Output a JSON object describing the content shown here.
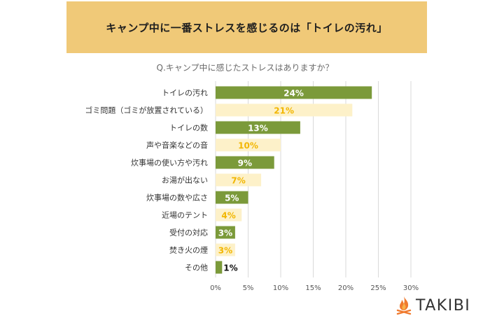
{
  "banner": {
    "title": "キャンプ中に一番ストレスを感じるのは「トイレの汚れ」"
  },
  "question": "Q.キャンプ中に感じたストレスはありますか？",
  "logo": {
    "text": "TAKIBI",
    "icon": "campfire-icon"
  },
  "colors": {
    "banner": "#f0c978",
    "bar_green": "#7b9a3a",
    "bar_cream": "#fdf1c9",
    "label_on_green": "#ffffff",
    "label_on_cream": "#f2b600",
    "label_outside": "#111111",
    "grid": "#d9d9d9"
  },
  "chart_data": {
    "type": "bar",
    "orientation": "horizontal",
    "categories": [
      "トイレの汚れ",
      "ゴミ問題（ゴミが放置されている）",
      "トイレの数",
      "声や音楽などの音",
      "炊事場の使い方や汚れ",
      "お湯が出ない",
      "炊事場の数や広さ",
      "近場のテント",
      "受付の対応",
      "焚き火の煙",
      "その他"
    ],
    "values": [
      24,
      21,
      13,
      10,
      9,
      7,
      5,
      4,
      3,
      3,
      1
    ],
    "value_labels": [
      "24%",
      "21%",
      "13%",
      "10%",
      "9%",
      "7%",
      "5%",
      "4%",
      "3%",
      "3%",
      "1%"
    ],
    "bar_colors": [
      "green",
      "cream",
      "green",
      "cream",
      "green",
      "cream",
      "green",
      "cream",
      "green",
      "cream",
      "green"
    ],
    "xlim": [
      0,
      30
    ],
    "xticks": [
      "0%",
      "5%",
      "10%",
      "15%",
      "20%",
      "25%",
      "30%"
    ],
    "grid": true,
    "legend": false
  }
}
